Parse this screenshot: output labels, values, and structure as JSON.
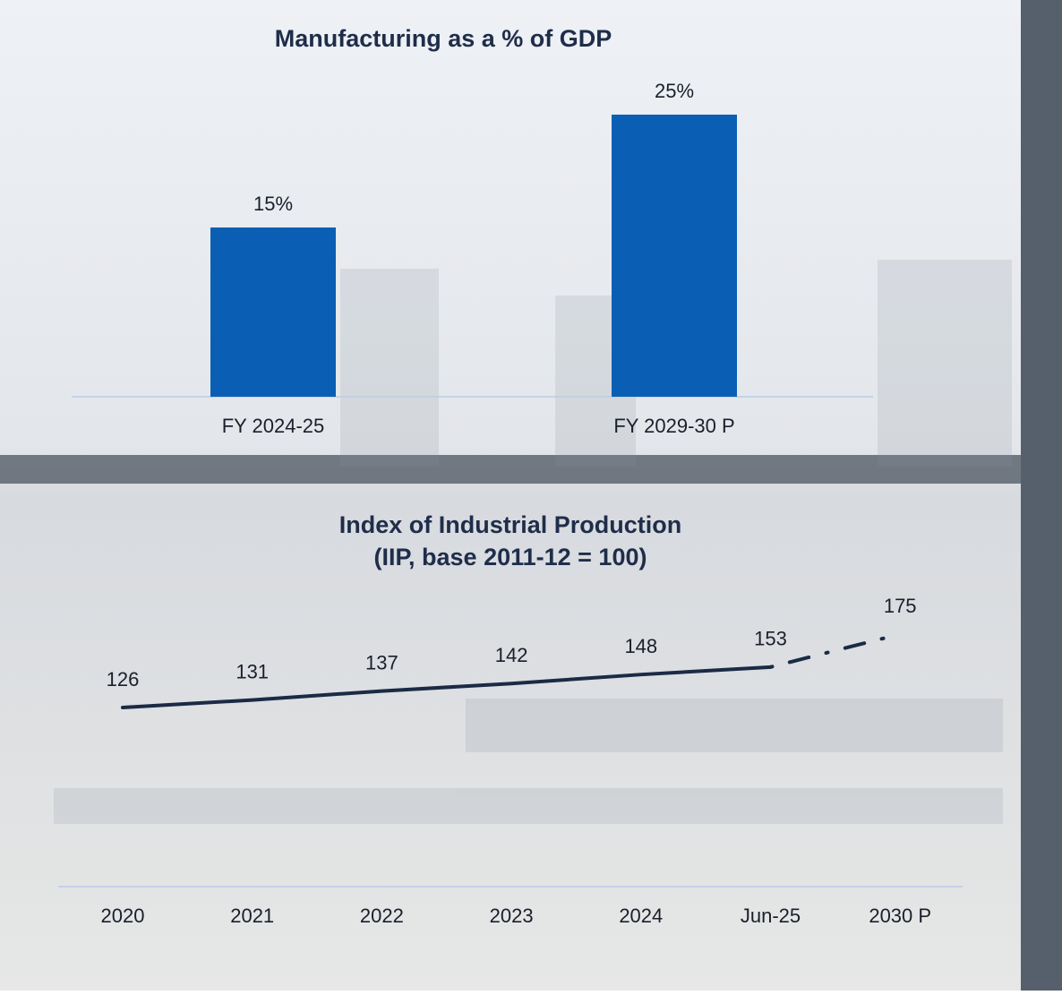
{
  "chart_data": [
    {
      "type": "bar",
      "title": "Manufacturing as a % of GDP",
      "categories": [
        "FY 2024-25",
        "FY 2029-30 P"
      ],
      "values": [
        15,
        25
      ],
      "value_labels": [
        "15%",
        "25%"
      ],
      "color": "#0a5fb4"
    },
    {
      "type": "line",
      "title": [
        "Index of Industrial Production",
        "(IIP, base 2011-12 = 100)"
      ],
      "categories": [
        "2020",
        "2021",
        "2022",
        "2023",
        "2024",
        "Jun-25",
        "2030 P"
      ],
      "series": [
        {
          "color": "#1b2a45",
          "values": [
            126,
            131,
            137,
            142,
            148,
            153,
            175
          ],
          "dashed": [
            false,
            false,
            false,
            false,
            false,
            false,
            true
          ]
        }
      ]
    }
  ]
}
